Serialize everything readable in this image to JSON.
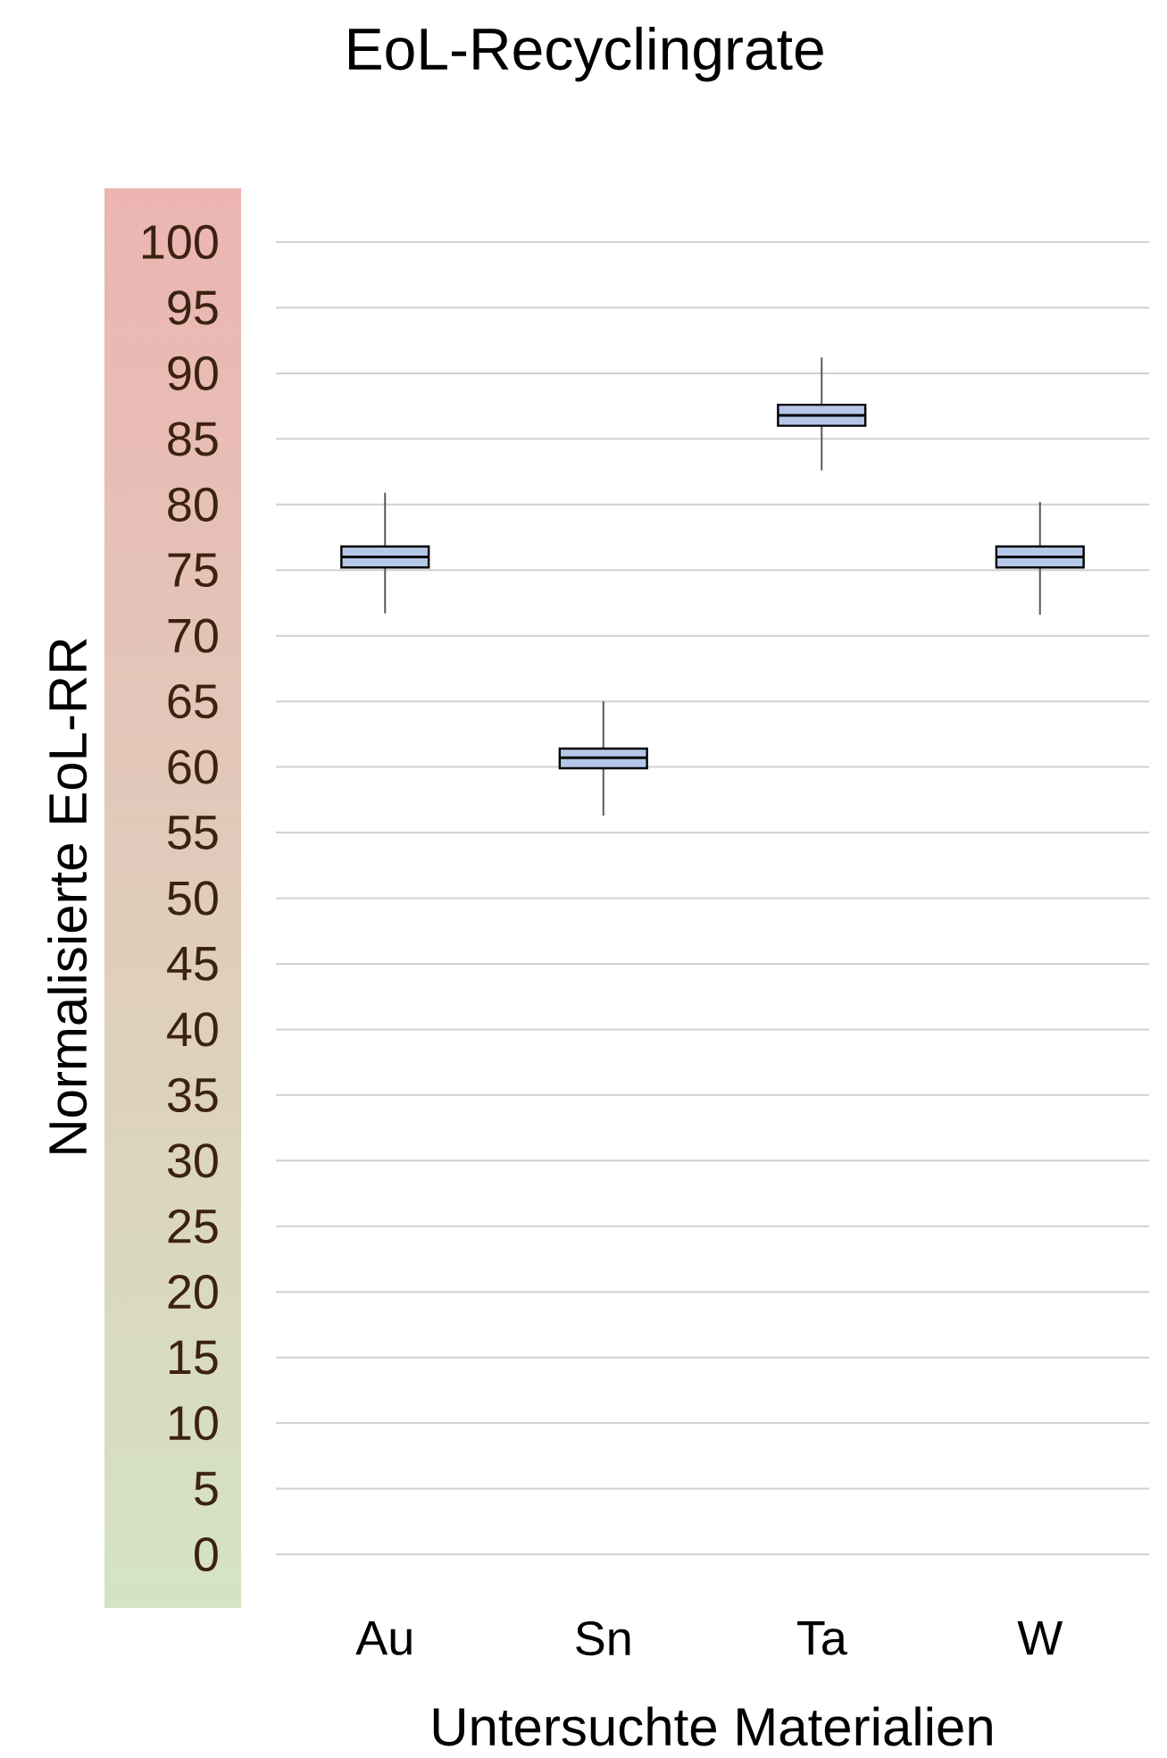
{
  "chart_data": {
    "type": "box",
    "title": "EoL-Recyclingrate",
    "xlabel": "Untersuchte Materialien",
    "ylabel": "Normalisierte EoL-RR",
    "categories": [
      "Au",
      "Sn",
      "Ta",
      "W"
    ],
    "series": [
      {
        "color": "#b4c7e7",
        "boxes": [
          {
            "low": 71.7,
            "q1": 75.2,
            "median": 76.0,
            "q3": 76.8,
            "high": 80.9
          },
          {
            "low": 56.3,
            "q1": 59.9,
            "median": 60.7,
            "q3": 61.4,
            "high": 65.0
          },
          {
            "low": 82.6,
            "q1": 86.0,
            "median": 86.8,
            "q3": 87.6,
            "high": 91.2
          },
          {
            "low": 71.6,
            "q1": 75.2,
            "median": 76.0,
            "q3": 76.8,
            "high": 80.2
          }
        ]
      }
    ],
    "ylim": [
      0,
      100
    ],
    "yticks": [
      0,
      5,
      10,
      15,
      20,
      25,
      30,
      35,
      40,
      45,
      50,
      55,
      60,
      65,
      70,
      75,
      80,
      85,
      90,
      95,
      100
    ],
    "grid": "y"
  }
}
